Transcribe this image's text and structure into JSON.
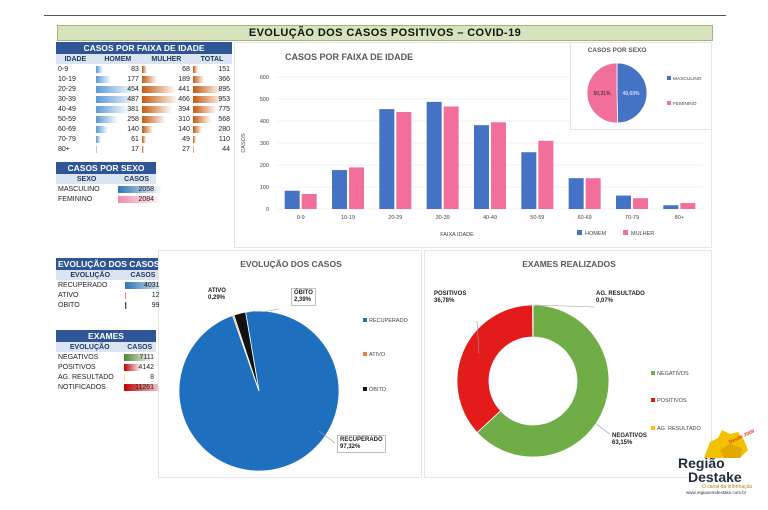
{
  "banner_title": "EVOLUÇÃO DOS  CASOS POSITIVOS – COVID-19",
  "colors": {
    "homem": "#4472c4",
    "mulher": "#f16f9a",
    "recuperado": "#1f6fbf",
    "ativo": "#ed7d31",
    "obito": "#111111",
    "negativos": "#70ad47",
    "positivos": "#e31b1b",
    "ag": "#ffc000"
  },
  "faixa_table": {
    "caption": "CASOS POR FAIXA DE IDADE",
    "headers": [
      "IDADE",
      "HOMEM",
      "MULHER",
      "TOTAL"
    ],
    "rows": [
      {
        "idade": "0-9",
        "homem": "83",
        "mulher": "68",
        "total": "151"
      },
      {
        "idade": "10-19",
        "homem": "177",
        "mulher": "189",
        "total": "366"
      },
      {
        "idade": "20-29",
        "homem": "454",
        "mulher": "441",
        "total": "895"
      },
      {
        "idade": "30-39",
        "homem": "487",
        "mulher": "466",
        "total": "953"
      },
      {
        "idade": "40-49",
        "homem": "381",
        "mulher": "394",
        "total": "775"
      },
      {
        "idade": "50-59",
        "homem": "258",
        "mulher": "310",
        "total": "568"
      },
      {
        "idade": "60-69",
        "homem": "140",
        "mulher": "140",
        "total": "280"
      },
      {
        "idade": "70-79",
        "homem": "61",
        "mulher": "49",
        "total": "110"
      },
      {
        "idade": "80+",
        "homem": "17",
        "mulher": "27",
        "total": "44"
      }
    ]
  },
  "sexo_table": {
    "caption": "CASOS POR SEXO",
    "headers": [
      "SEXO",
      "CASOS"
    ],
    "rows": [
      {
        "label": "MASCULINO",
        "value": "2058"
      },
      {
        "label": "FEMININO",
        "value": "2084"
      }
    ]
  },
  "evolucao_table": {
    "caption": "EVOLUÇÃO DOS CASOS",
    "headers": [
      "EVOLUÇÃO",
      "CASOS"
    ],
    "rows": [
      {
        "label": "RECUPERADO",
        "value": "4031"
      },
      {
        "label": "ATIVO",
        "value": "12"
      },
      {
        "label": "ÓBITO",
        "value": "99"
      }
    ]
  },
  "exames_table": {
    "caption": "EXAMES",
    "headers": [
      "EVOLUÇÃO",
      "CASOS"
    ],
    "rows": [
      {
        "label": "NEGATIVOS",
        "value": "7111"
      },
      {
        "label": "POSITIVOS",
        "value": "4142"
      },
      {
        "label": "AG. RESULTADO",
        "value": "8"
      },
      {
        "label": "NOTIFICADOS",
        "value": "11261"
      }
    ]
  },
  "chart_data": [
    {
      "type": "bar",
      "title": "CASOS POR FAIXA DE IDADE",
      "xlabel": "FAIXA IDADE",
      "ylabel": "CASOS",
      "ylim": [
        0,
        600
      ],
      "yticks": [
        "0",
        "100",
        "200",
        "300",
        "400",
        "500",
        "600"
      ],
      "categories": [
        "0-9",
        "10-19",
        "20-29",
        "30-39",
        "40-49",
        "50-59",
        "60-69",
        "70-79",
        "80+"
      ],
      "series": [
        {
          "name": "HOMEM",
          "values": [
            83,
            177,
            454,
            487,
            381,
            258,
            140,
            61,
            17
          ]
        },
        {
          "name": "MULHER",
          "values": [
            68,
            189,
            441,
            466,
            394,
            310,
            140,
            49,
            27
          ]
        }
      ],
      "legend": "bottom-right"
    },
    {
      "type": "pie",
      "title": "CASOS POR SEXO",
      "labels": [
        "MASCULINO",
        "FEMININO"
      ],
      "values": [
        49.69,
        50.31
      ],
      "data_labels": [
        "49,69%",
        "50,31%"
      ],
      "legend": "right"
    },
    {
      "type": "pie",
      "title": "EVOLUÇÃO DOS CASOS",
      "labels": [
        "RECUPERADO",
        "ATIVO",
        "ÓBITO"
      ],
      "values": [
        97.32,
        0.29,
        2.39
      ],
      "data_labels": [
        "97,32%",
        "0,29%",
        "2,39%"
      ],
      "legend": "right"
    },
    {
      "type": "pie",
      "title": "EXAMES REALIZADOS",
      "labels": [
        "NEGATIVOS",
        "POSITIVOS",
        "AG. RESULTADO"
      ],
      "values": [
        63.15,
        36.78,
        0.07
      ],
      "data_labels": [
        "63,15%",
        "36,78%",
        "0,07%"
      ],
      "legend": "right"
    }
  ],
  "logo": {
    "line1": "Região",
    "line2": "Destake",
    "tagline": "O canal da informação",
    "url": "www.regiaoemdestake.com.br",
    "badge": "Desde 2009"
  }
}
